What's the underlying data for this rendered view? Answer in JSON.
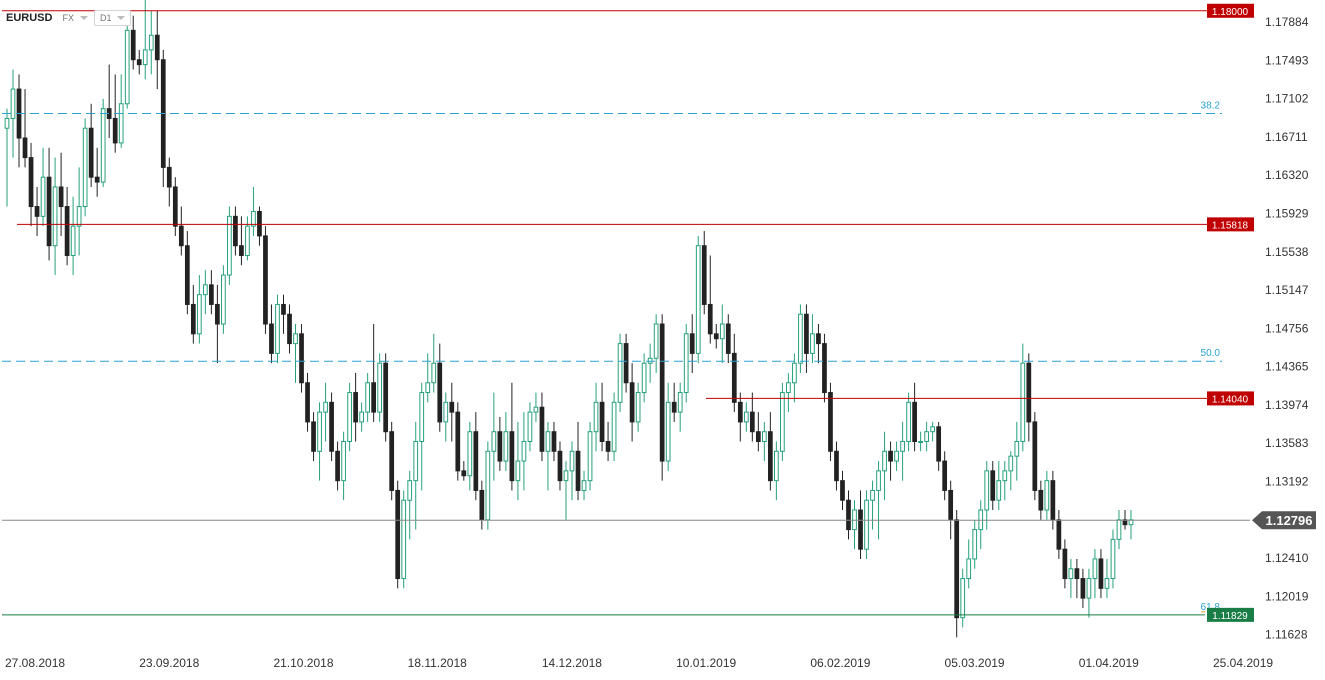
{
  "toolbar": {
    "symbol": "EURUSD",
    "market": "FX",
    "timeframe": "D1",
    "icons": [
      "chevron-down-icon"
    ]
  },
  "chart_data": {
    "type": "candlestick",
    "symbol": "EURUSD",
    "timeframe": "D1",
    "ylim": [
      1.1147,
      1.1811
    ],
    "y_ticks": [
      "1.17884",
      "1.17493",
      "1.17102",
      "1.16711",
      "1.16320",
      "1.15929",
      "1.15538",
      "1.15147",
      "1.14756",
      "1.14365",
      "1.13974",
      "1.13583",
      "1.13192",
      "1.12410",
      "1.12019",
      "1.11628"
    ],
    "x_ticks": [
      "27.08.2018",
      "23.09.2018",
      "21.10.2018",
      "18.11.2018",
      "14.12.2018",
      "10.01.2019",
      "06.02.2019",
      "05.03.2019",
      "01.04.2019",
      "25.04.2019"
    ],
    "levels": [
      {
        "label": "1.18000",
        "price": 1.18,
        "color": "#c00000"
      },
      {
        "label": "1.15818",
        "price": 1.15818,
        "color": "#c00000"
      },
      {
        "label": "1.14040",
        "price": 1.1404,
        "color": "#c00000"
      }
    ],
    "fibonacci": [
      {
        "label": "38.2",
        "price": 1.1695
      },
      {
        "label": "50.0",
        "price": 1.1442
      },
      {
        "label": "61.8",
        "price": 1.11829
      }
    ],
    "current_price": {
      "label": "1.12796",
      "price": 1.12796
    },
    "fib_low_marker": {
      "label": "1.11829",
      "price": 1.11829
    },
    "colors": {
      "up": "#26a17b",
      "down": "#222222",
      "level": "#c00000",
      "fib": "#2aa3d4",
      "price": "#555555",
      "fib_low": "#1a7d45"
    },
    "candles": [
      [
        1.168,
        1.17,
        1.16,
        1.169
      ],
      [
        1.169,
        1.174,
        1.165,
        1.172
      ],
      [
        1.172,
        1.1735,
        1.164,
        1.167
      ],
      [
        1.167,
        1.172,
        1.164,
        1.165
      ],
      [
        1.165,
        1.1665,
        1.158,
        1.16
      ],
      [
        1.16,
        1.162,
        1.157,
        1.159
      ],
      [
        1.159,
        1.166,
        1.158,
        1.163
      ],
      [
        1.163,
        1.166,
        1.1545,
        1.156
      ],
      [
        1.156,
        1.165,
        1.153,
        1.162
      ],
      [
        1.162,
        1.1655,
        1.157,
        1.16
      ],
      [
        1.16,
        1.162,
        1.154,
        1.155
      ],
      [
        1.155,
        1.161,
        1.153,
        1.158
      ],
      [
        1.158,
        1.164,
        1.155,
        1.16
      ],
      [
        1.16,
        1.169,
        1.159,
        1.168
      ],
      [
        1.168,
        1.1705,
        1.162,
        1.163
      ],
      [
        1.163,
        1.166,
        1.161,
        1.1625
      ],
      [
        1.1625,
        1.171,
        1.162,
        1.17
      ],
      [
        1.17,
        1.1745,
        1.167,
        1.169
      ],
      [
        1.169,
        1.1735,
        1.1655,
        1.1665
      ],
      [
        1.1665,
        1.1735,
        1.166,
        1.1705
      ],
      [
        1.1705,
        1.179,
        1.17,
        1.178
      ],
      [
        1.178,
        1.1795,
        1.174,
        1.175
      ],
      [
        1.175,
        1.176,
        1.1735,
        1.1745
      ],
      [
        1.1745,
        1.1815,
        1.173,
        1.176
      ],
      [
        1.176,
        1.18,
        1.1735,
        1.1775
      ],
      [
        1.1775,
        1.18,
        1.172,
        1.175
      ],
      [
        1.175,
        1.176,
        1.162,
        1.164
      ],
      [
        1.164,
        1.165,
        1.16,
        1.162
      ],
      [
        1.162,
        1.163,
        1.157,
        1.158
      ],
      [
        1.158,
        1.16,
        1.155,
        1.156
      ],
      [
        1.156,
        1.1575,
        1.149,
        1.15
      ],
      [
        1.15,
        1.152,
        1.146,
        1.147
      ],
      [
        1.147,
        1.153,
        1.146,
        1.151
      ],
      [
        1.151,
        1.1535,
        1.149,
        1.152
      ],
      [
        1.152,
        1.1535,
        1.149,
        1.15
      ],
      [
        1.15,
        1.152,
        1.144,
        1.148
      ],
      [
        1.148,
        1.154,
        1.147,
        1.153
      ],
      [
        1.153,
        1.16,
        1.152,
        1.159
      ],
      [
        1.159,
        1.16,
        1.155,
        1.156
      ],
      [
        1.156,
        1.159,
        1.154,
        1.155
      ],
      [
        1.155,
        1.159,
        1.1545,
        1.158
      ],
      [
        1.158,
        1.162,
        1.157,
        1.1595
      ],
      [
        1.1595,
        1.16,
        1.156,
        1.157
      ],
      [
        1.157,
        1.158,
        1.147,
        1.148
      ],
      [
        1.148,
        1.15,
        1.144,
        1.145
      ],
      [
        1.145,
        1.151,
        1.144,
        1.15
      ],
      [
        1.15,
        1.151,
        1.147,
        1.149
      ],
      [
        1.149,
        1.15,
        1.145,
        1.146
      ],
      [
        1.146,
        1.148,
        1.142,
        1.147
      ],
      [
        1.147,
        1.148,
        1.141,
        1.142
      ],
      [
        1.142,
        1.143,
        1.137,
        1.138
      ],
      [
        1.138,
        1.139,
        1.134,
        1.135
      ],
      [
        1.135,
        1.14,
        1.132,
        1.139
      ],
      [
        1.139,
        1.142,
        1.136,
        1.14
      ],
      [
        1.14,
        1.141,
        1.134,
        1.135
      ],
      [
        1.135,
        1.136,
        1.131,
        1.132
      ],
      [
        1.132,
        1.137,
        1.13,
        1.136
      ],
      [
        1.136,
        1.142,
        1.135,
        1.141
      ],
      [
        1.141,
        1.143,
        1.136,
        1.138
      ],
      [
        1.138,
        1.14,
        1.137,
        1.139
      ],
      [
        1.139,
        1.143,
        1.138,
        1.142
      ],
      [
        1.142,
        1.148,
        1.138,
        1.139
      ],
      [
        1.139,
        1.145,
        1.138,
        1.144
      ],
      [
        1.144,
        1.145,
        1.136,
        1.137
      ],
      [
        1.137,
        1.138,
        1.13,
        1.131
      ],
      [
        1.131,
        1.132,
        1.121,
        1.122
      ],
      [
        1.122,
        1.131,
        1.121,
        1.13
      ],
      [
        1.13,
        1.133,
        1.126,
        1.132
      ],
      [
        1.132,
        1.138,
        1.127,
        1.136
      ],
      [
        1.136,
        1.142,
        1.131,
        1.141
      ],
      [
        1.141,
        1.145,
        1.14,
        1.142
      ],
      [
        1.142,
        1.147,
        1.141,
        1.144
      ],
      [
        1.144,
        1.146,
        1.137,
        1.138
      ],
      [
        1.138,
        1.141,
        1.136,
        1.14
      ],
      [
        1.14,
        1.142,
        1.136,
        1.139
      ],
      [
        1.139,
        1.14,
        1.132,
        1.133
      ],
      [
        1.133,
        1.134,
        1.132,
        1.1325
      ],
      [
        1.1325,
        1.138,
        1.131,
        1.137
      ],
      [
        1.137,
        1.139,
        1.13,
        1.131
      ],
      [
        1.131,
        1.132,
        1.127,
        1.128
      ],
      [
        1.128,
        1.136,
        1.127,
        1.135
      ],
      [
        1.135,
        1.141,
        1.132,
        1.137
      ],
      [
        1.137,
        1.1385,
        1.133,
        1.134
      ],
      [
        1.134,
        1.139,
        1.133,
        1.137
      ],
      [
        1.137,
        1.142,
        1.131,
        1.132
      ],
      [
        1.132,
        1.138,
        1.13,
        1.134
      ],
      [
        1.134,
        1.139,
        1.131,
        1.136
      ],
      [
        1.136,
        1.14,
        1.135,
        1.139
      ],
      [
        1.139,
        1.141,
        1.138,
        1.1395
      ],
      [
        1.1395,
        1.141,
        1.134,
        1.135
      ],
      [
        1.135,
        1.138,
        1.131,
        1.137
      ],
      [
        1.137,
        1.138,
        1.134,
        1.135
      ],
      [
        1.135,
        1.136,
        1.131,
        1.132
      ],
      [
        1.132,
        1.134,
        1.128,
        1.133
      ],
      [
        1.133,
        1.136,
        1.13,
        1.135
      ],
      [
        1.135,
        1.138,
        1.13,
        1.131
      ],
      [
        1.131,
        1.133,
        1.13,
        1.132
      ],
      [
        1.132,
        1.138,
        1.131,
        1.137
      ],
      [
        1.137,
        1.142,
        1.135,
        1.14
      ],
      [
        1.14,
        1.142,
        1.135,
        1.136
      ],
      [
        1.136,
        1.138,
        1.134,
        1.135
      ],
      [
        1.135,
        1.141,
        1.134,
        1.14
      ],
      [
        1.14,
        1.147,
        1.139,
        1.146
      ],
      [
        1.146,
        1.147,
        1.141,
        1.142
      ],
      [
        1.142,
        1.144,
        1.136,
        1.138
      ],
      [
        1.138,
        1.142,
        1.137,
        1.141
      ],
      [
        1.141,
        1.145,
        1.14,
        1.144
      ],
      [
        1.144,
        1.146,
        1.142,
        1.1445
      ],
      [
        1.1445,
        1.149,
        1.143,
        1.148
      ],
      [
        1.148,
        1.149,
        1.132,
        1.134
      ],
      [
        1.134,
        1.142,
        1.133,
        1.14
      ],
      [
        1.14,
        1.142,
        1.138,
        1.139
      ],
      [
        1.139,
        1.142,
        1.137,
        1.141
      ],
      [
        1.141,
        1.148,
        1.14,
        1.147
      ],
      [
        1.147,
        1.149,
        1.143,
        1.145
      ],
      [
        1.145,
        1.157,
        1.144,
        1.156
      ],
      [
        1.156,
        1.1575,
        1.149,
        1.15
      ],
      [
        1.15,
        1.155,
        1.146,
        1.147
      ],
      [
        1.147,
        1.148,
        1.1455,
        1.1465
      ],
      [
        1.1465,
        1.15,
        1.144,
        1.148
      ],
      [
        1.148,
        1.149,
        1.144,
        1.145
      ],
      [
        1.145,
        1.147,
        1.139,
        1.14
      ],
      [
        1.14,
        1.141,
        1.136,
        1.138
      ],
      [
        1.138,
        1.14,
        1.137,
        1.139
      ],
      [
        1.139,
        1.141,
        1.136,
        1.137
      ],
      [
        1.137,
        1.139,
        1.135,
        1.136
      ],
      [
        1.136,
        1.138,
        1.134,
        1.137
      ],
      [
        1.137,
        1.139,
        1.131,
        1.132
      ],
      [
        1.132,
        1.136,
        1.13,
        1.135
      ],
      [
        1.135,
        1.142,
        1.134,
        1.141
      ],
      [
        1.141,
        1.143,
        1.139,
        1.142
      ],
      [
        1.142,
        1.145,
        1.14,
        1.144
      ],
      [
        1.144,
        1.15,
        1.143,
        1.149
      ],
      [
        1.149,
        1.15,
        1.143,
        1.145
      ],
      [
        1.145,
        1.149,
        1.144,
        1.147
      ],
      [
        1.147,
        1.148,
        1.144,
        1.146
      ],
      [
        1.146,
        1.147,
        1.14,
        1.141
      ],
      [
        1.141,
        1.142,
        1.134,
        1.135
      ],
      [
        1.135,
        1.136,
        1.131,
        1.132
      ],
      [
        1.132,
        1.133,
        1.129,
        1.13
      ],
      [
        1.13,
        1.131,
        1.126,
        1.127
      ],
      [
        1.127,
        1.13,
        1.125,
        1.129
      ],
      [
        1.129,
        1.131,
        1.124,
        1.125
      ],
      [
        1.125,
        1.131,
        1.124,
        1.13
      ],
      [
        1.13,
        1.132,
        1.127,
        1.131
      ],
      [
        1.131,
        1.134,
        1.126,
        1.133
      ],
      [
        1.133,
        1.137,
        1.13,
        1.135
      ],
      [
        1.135,
        1.136,
        1.132,
        1.134
      ],
      [
        1.134,
        1.136,
        1.133,
        1.135
      ],
      [
        1.135,
        1.138,
        1.132,
        1.136
      ],
      [
        1.136,
        1.141,
        1.135,
        1.14
      ],
      [
        1.14,
        1.142,
        1.135,
        1.136
      ],
      [
        1.136,
        1.137,
        1.135,
        1.136
      ],
      [
        1.136,
        1.138,
        1.135,
        1.137
      ],
      [
        1.137,
        1.138,
        1.136,
        1.1375
      ],
      [
        1.1375,
        1.138,
        1.133,
        1.134
      ],
      [
        1.134,
        1.135,
        1.13,
        1.131
      ],
      [
        1.131,
        1.132,
        1.126,
        1.128
      ],
      [
        1.128,
        1.129,
        1.116,
        1.118
      ],
      [
        1.118,
        1.123,
        1.117,
        1.122
      ],
      [
        1.122,
        1.126,
        1.121,
        1.124
      ],
      [
        1.124,
        1.128,
        1.123,
        1.127
      ],
      [
        1.127,
        1.13,
        1.125,
        1.129
      ],
      [
        1.129,
        1.134,
        1.127,
        1.133
      ],
      [
        1.133,
        1.134,
        1.129,
        1.13
      ],
      [
        1.13,
        1.134,
        1.129,
        1.132
      ],
      [
        1.132,
        1.134,
        1.13,
        1.133
      ],
      [
        1.133,
        1.135,
        1.131,
        1.1345
      ],
      [
        1.1345,
        1.138,
        1.132,
        1.136
      ],
      [
        1.136,
        1.146,
        1.135,
        1.144
      ],
      [
        1.144,
        1.145,
        1.136,
        1.138
      ],
      [
        1.138,
        1.139,
        1.13,
        1.131
      ],
      [
        1.131,
        1.132,
        1.128,
        1.129
      ],
      [
        1.129,
        1.133,
        1.128,
        1.132
      ],
      [
        1.132,
        1.133,
        1.127,
        1.128
      ],
      [
        1.128,
        1.129,
        1.124,
        1.125
      ],
      [
        1.125,
        1.126,
        1.121,
        1.122
      ],
      [
        1.122,
        1.124,
        1.12,
        1.123
      ],
      [
        1.123,
        1.124,
        1.12,
        1.122
      ],
      [
        1.122,
        1.123,
        1.119,
        1.12
      ],
      [
        1.12,
        1.123,
        1.118,
        1.122
      ],
      [
        1.122,
        1.125,
        1.12,
        1.124
      ],
      [
        1.124,
        1.125,
        1.12,
        1.121
      ],
      [
        1.121,
        1.124,
        1.12,
        1.122
      ],
      [
        1.122,
        1.127,
        1.121,
        1.126
      ],
      [
        1.126,
        1.129,
        1.125,
        1.128
      ],
      [
        1.128,
        1.129,
        1.127,
        1.1275
      ],
      [
        1.1275,
        1.129,
        1.126,
        1.128
      ]
    ]
  }
}
